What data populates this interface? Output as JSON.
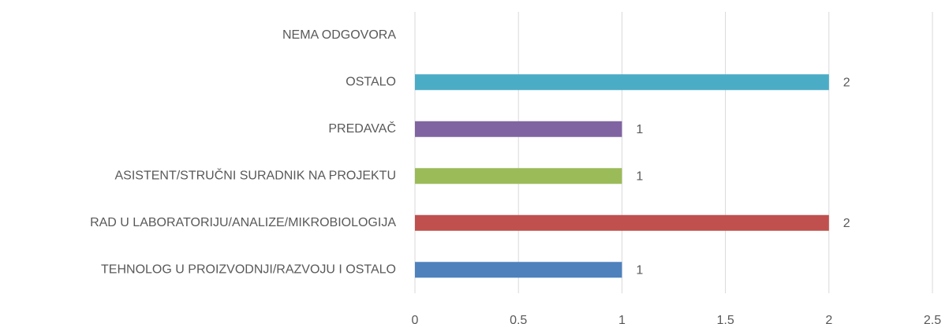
{
  "chart_data": {
    "type": "barh",
    "categories": [
      "TEHNOLOG U PROIZVODNJI/RAZVOJU I OSTALO",
      "RAD U LABORATORIJU/ANALIZE/MIKROBIOLOGIJA",
      "ASISTENT/STRUČNI SURADNIK NA PROJEKTU",
      "PREDAVAČ",
      "OSTALO",
      "NEMA ODGOVORA"
    ],
    "values": [
      1,
      2,
      1,
      1,
      2,
      null
    ],
    "colors": [
      "#4f81bd",
      "#c0504d",
      "#9bbb59",
      "#8064a2",
      "#4bacc6",
      "#f79646"
    ],
    "xlim": [
      0,
      2.5
    ],
    "xticks": [
      0,
      {
        "value": 0.5,
        "label": "0,5"
      },
      1,
      {
        "value": 1.5,
        "label": "1,5"
      },
      2,
      {
        "value": 2.5,
        "label": "2,5"
      }
    ],
    "grid": true
  }
}
